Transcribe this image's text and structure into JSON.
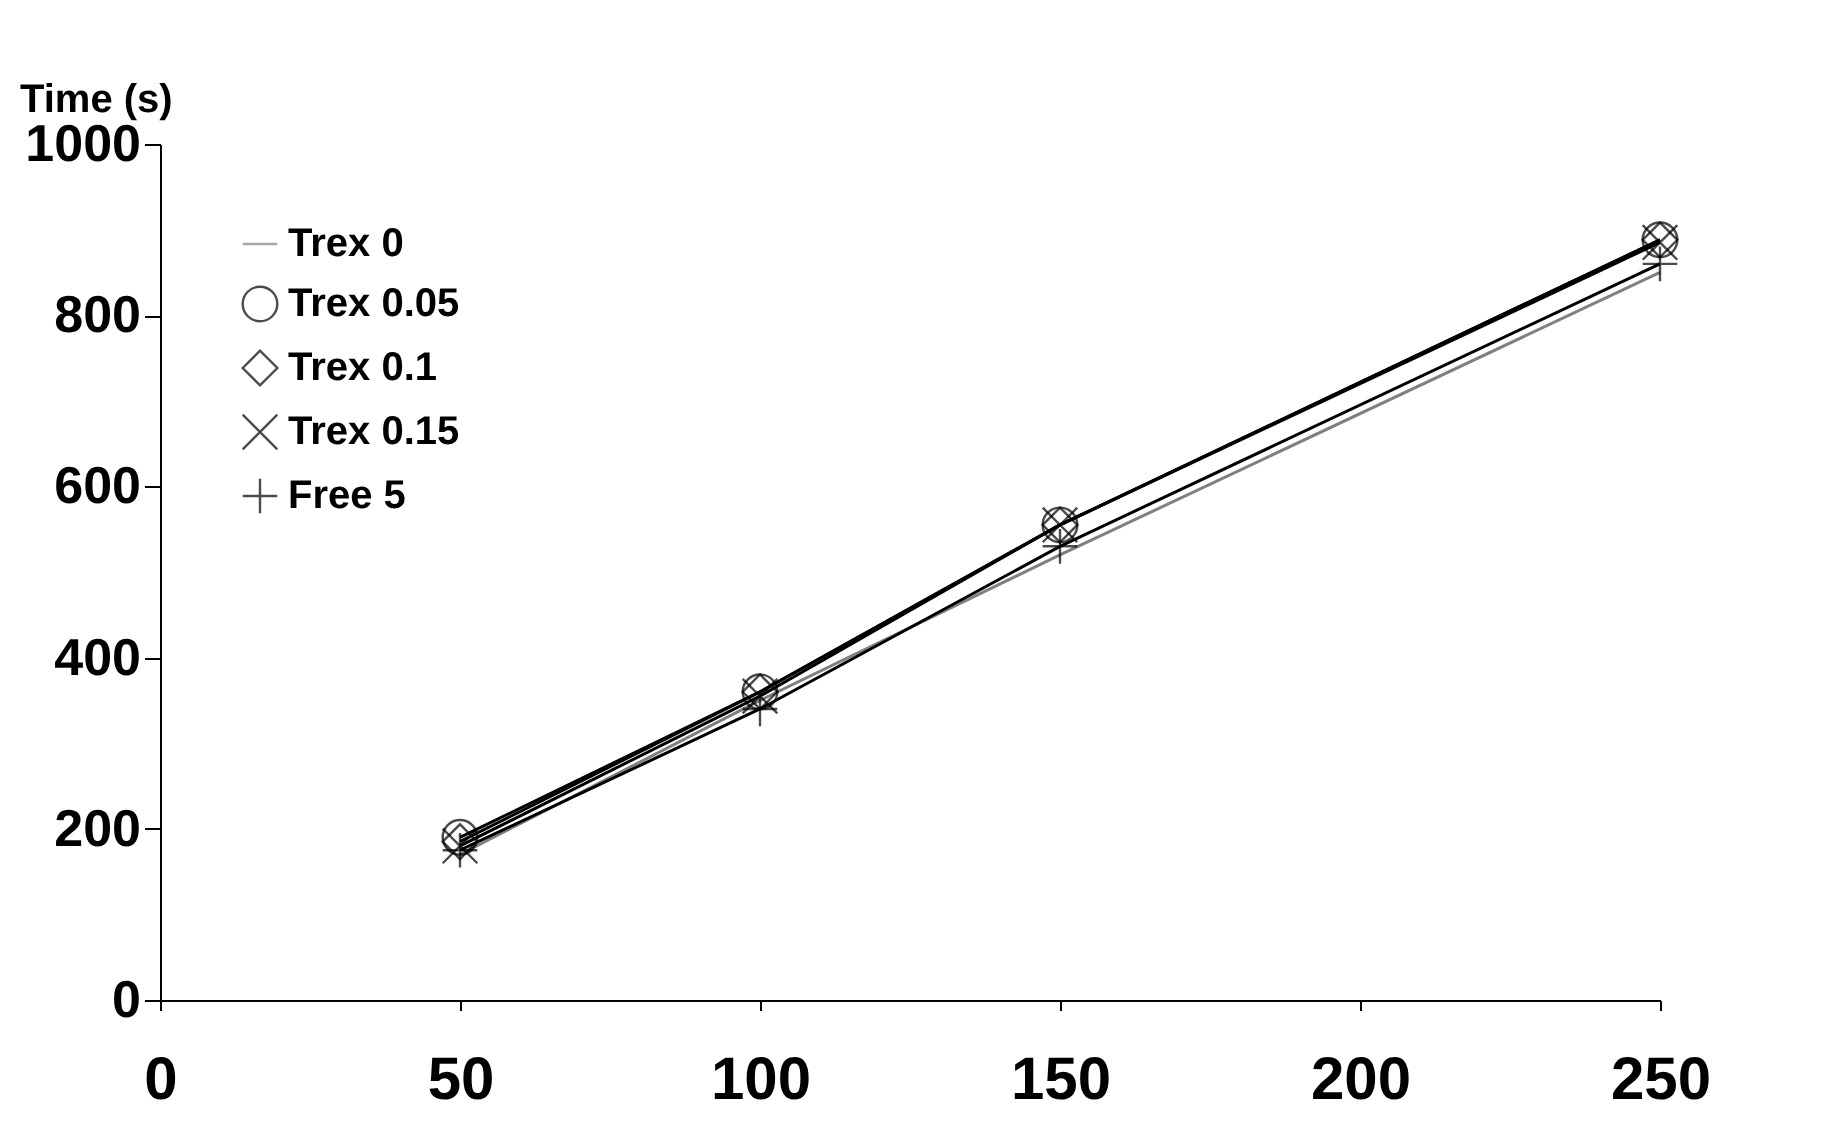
{
  "chart_data": {
    "type": "line",
    "ylabel": "Time (s)",
    "x": [
      50,
      100,
      150,
      250
    ],
    "series": [
      {
        "name": "Trex 0",
        "color": "#808080",
        "marker": "none",
        "values": [
          170,
          350,
          520,
          850
        ]
      },
      {
        "name": "Trex 0.05",
        "color": "#000000",
        "marker": "circle",
        "values": [
          190,
          360,
          555,
          888
        ]
      },
      {
        "name": "Trex 0.1",
        "color": "#000000",
        "marker": "diamond",
        "values": [
          185,
          360,
          555,
          888
        ]
      },
      {
        "name": "Trex 0.15",
        "color": "#000000",
        "marker": "x",
        "values": [
          180,
          355,
          555,
          885
        ]
      },
      {
        "name": "Free 5",
        "color": "#000000",
        "marker": "cross",
        "values": [
          175,
          340,
          530,
          860
        ]
      }
    ],
    "xlim": [
      0,
      250
    ],
    "xticks": [
      0,
      50,
      100,
      150,
      200,
      250
    ],
    "ylim": [
      0,
      1000
    ],
    "yticks": [
      0,
      200,
      400,
      600,
      800,
      1000
    ],
    "grid": false,
    "legend": "top left",
    "line_style": "solid"
  }
}
